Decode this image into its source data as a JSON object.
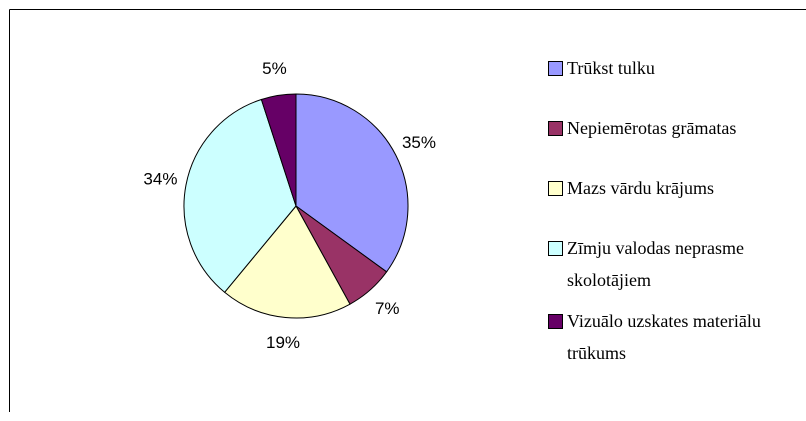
{
  "chart_data": {
    "type": "pie",
    "categories": [
      "Trūkst tulku",
      "Nepiemērotas grāmatas",
      "Mazs vārdu krājums",
      "Zīmju valodas neprasme skolotājiem",
      "Vizuālo uzskates materiālu trūkums"
    ],
    "values": [
      35,
      7,
      19,
      34,
      5
    ],
    "value_labels": [
      "35%",
      "7%",
      "19%",
      "34%",
      "5%"
    ],
    "colors": [
      "#9999ff",
      "#993366",
      "#ffffcc",
      "#ccffff",
      "#660066"
    ],
    "legend": "right"
  }
}
